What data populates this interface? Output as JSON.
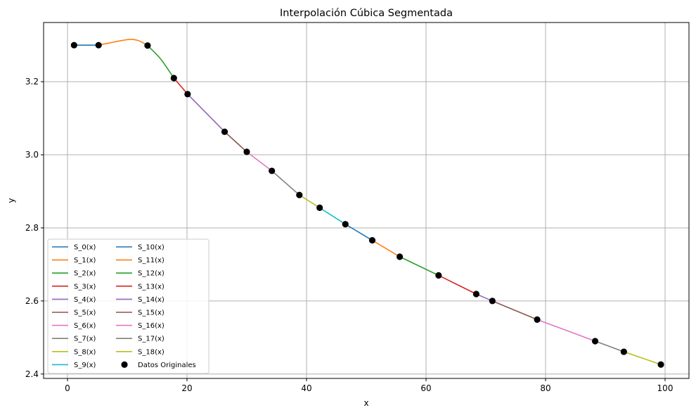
{
  "chart_data": {
    "type": "line",
    "title": "Interpolación Cúbica Segmentada",
    "xlabel": "x",
    "ylabel": "y",
    "xlim": [
      -4,
      104
    ],
    "ylim": [
      2.388,
      3.362
    ],
    "xticks": [
      0,
      20,
      40,
      60,
      80,
      100
    ],
    "xtick_labels": [
      "0",
      "20",
      "40",
      "60",
      "80",
      "100"
    ],
    "yticks": [
      2.4,
      2.6,
      2.8,
      3.0,
      3.2
    ],
    "ytick_labels": [
      "2.4",
      "2.6",
      "2.8",
      "3.0",
      "3.2"
    ],
    "grid": true,
    "legend_position": "lower-left",
    "legend_columns": 2,
    "points": {
      "name": "Datos Originales",
      "color": "#000000",
      "x": [
        1.1,
        5.2,
        13.4,
        17.8,
        20.1,
        26.3,
        30.0,
        34.2,
        38.8,
        42.2,
        46.5,
        51.0,
        55.6,
        62.1,
        68.4,
        71.1,
        78.6,
        88.3,
        93.1,
        99.3
      ],
      "y": [
        3.3,
        3.3,
        3.299,
        3.21,
        3.166,
        3.063,
        3.008,
        2.956,
        2.89,
        2.855,
        2.81,
        2.766,
        2.721,
        2.67,
        2.619,
        2.6,
        2.549,
        2.49,
        2.461,
        2.426
      ]
    },
    "curve_extras": {
      "1": [
        [
          7.0,
          3.306
        ],
        [
          9.2,
          3.313
        ],
        [
          10.6,
          3.316
        ],
        [
          11.8,
          3.313
        ],
        [
          12.7,
          3.306
        ]
      ],
      "2": [
        [
          15.6,
          3.262
        ]
      ]
    },
    "series": [
      {
        "name": "S_0(x)",
        "color": "#1f77b4"
      },
      {
        "name": "S_1(x)",
        "color": "#ff7f0e"
      },
      {
        "name": "S_2(x)",
        "color": "#2ca02c"
      },
      {
        "name": "S_3(x)",
        "color": "#d62728"
      },
      {
        "name": "S_4(x)",
        "color": "#9467bd"
      },
      {
        "name": "S_5(x)",
        "color": "#8c564b"
      },
      {
        "name": "S_6(x)",
        "color": "#e377c2"
      },
      {
        "name": "S_7(x)",
        "color": "#7f7f7f"
      },
      {
        "name": "S_8(x)",
        "color": "#bcbd22"
      },
      {
        "name": "S_9(x)",
        "color": "#17becf"
      },
      {
        "name": "S_10(x)",
        "color": "#1f77b4"
      },
      {
        "name": "S_11(x)",
        "color": "#ff7f0e"
      },
      {
        "name": "S_12(x)",
        "color": "#2ca02c"
      },
      {
        "name": "S_13(x)",
        "color": "#d62728"
      },
      {
        "name": "S_14(x)",
        "color": "#9467bd"
      },
      {
        "name": "S_15(x)",
        "color": "#8c564b"
      },
      {
        "name": "S_16(x)",
        "color": "#e377c2"
      },
      {
        "name": "S_17(x)",
        "color": "#7f7f7f"
      },
      {
        "name": "S_18(x)",
        "color": "#bcbd22"
      }
    ]
  }
}
